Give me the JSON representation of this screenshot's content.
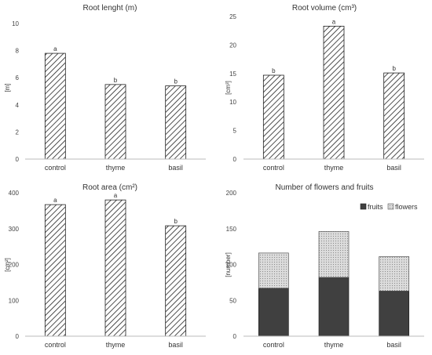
{
  "chart_data": [
    {
      "type": "bar",
      "title": "Root lenght (m)",
      "ylabel": "[m]",
      "categories": [
        "control",
        "thyme",
        "basil"
      ],
      "values": [
        7.8,
        5.5,
        5.4
      ],
      "significance": [
        "a",
        "b",
        "b"
      ],
      "ylim": [
        0,
        10
      ],
      "yticks": [
        0,
        2,
        4,
        6,
        8,
        10
      ],
      "grid": false,
      "fill": "diagonal-hatch"
    },
    {
      "type": "bar",
      "title": "Root volume (cm³)",
      "ylabel": "[cm³]",
      "categories": [
        "control",
        "thyme",
        "basil"
      ],
      "values": [
        14.7,
        23.3,
        15.1
      ],
      "significance": [
        "b",
        "a",
        "b"
      ],
      "ylim": [
        0,
        25
      ],
      "yticks": [
        0,
        5,
        10,
        15,
        20,
        25
      ],
      "grid": false,
      "fill": "diagonal-hatch"
    },
    {
      "type": "bar",
      "title": "Root area (cm²)",
      "ylabel": "[cm²]",
      "categories": [
        "control",
        "thyme",
        "basil"
      ],
      "values": [
        367,
        380,
        308
      ],
      "significance": [
        "a",
        "a",
        "b"
      ],
      "ylim": [
        0,
        400
      ],
      "yticks": [
        0,
        100,
        200,
        300,
        400
      ],
      "grid": false,
      "fill": "diagonal-hatch"
    },
    {
      "type": "bar",
      "stacked": true,
      "title": "Number of flowers and fruits",
      "ylabel": "[number]",
      "categories": [
        "control",
        "thyme",
        "basil"
      ],
      "series": [
        {
          "name": "fruits",
          "values": [
            67,
            82,
            63
          ],
          "color": "#404040"
        },
        {
          "name": "flowers",
          "values": [
            49,
            64,
            48
          ],
          "color": "#cfcfcf"
        }
      ],
      "ylim": [
        0,
        200
      ],
      "yticks": [
        0,
        50,
        100,
        150,
        200
      ],
      "grid": false,
      "legend": "top-right"
    }
  ]
}
